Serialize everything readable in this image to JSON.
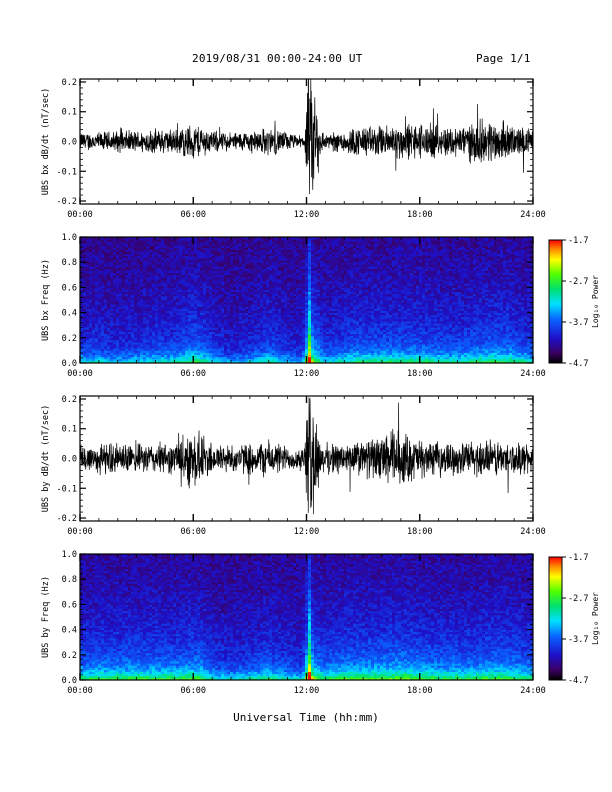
{
  "header": {
    "title": "2019/08/31  00:00-24:00 UT",
    "page": "Page 1/1"
  },
  "chart_data": [
    {
      "type": "line",
      "title": "",
      "ylabel": "UBS bx dB/dt (nT/sec)",
      "xlabel": "",
      "x_range_hours": [
        0,
        24
      ],
      "ylim": [
        -0.21,
        0.21
      ],
      "xticks": [
        "00:00",
        "06:00",
        "12:00",
        "18:00",
        "24:00"
      ],
      "yticks": [
        "-0.2",
        "-0.1",
        "0.0",
        "0.1",
        "0.2"
      ],
      "amplitude_envelope": {
        "hours": [
          0,
          1,
          2,
          3,
          4,
          5,
          5.5,
          6,
          6.5,
          7,
          8,
          9,
          10,
          10.5,
          11,
          11.5,
          11.9,
          12.1,
          12.4,
          12.7,
          13,
          14,
          15,
          16,
          17,
          18,
          19,
          20,
          21,
          22,
          23,
          24
        ],
        "values": [
          0.03,
          0.03,
          0.035,
          0.035,
          0.04,
          0.04,
          0.05,
          0.06,
          0.05,
          0.035,
          0.03,
          0.035,
          0.045,
          0.04,
          0.03,
          0.02,
          0.02,
          0.21,
          0.21,
          0.05,
          0.025,
          0.04,
          0.05,
          0.05,
          0.06,
          0.06,
          0.05,
          0.05,
          0.07,
          0.07,
          0.05,
          0.04
        ]
      }
    },
    {
      "type": "heatmap",
      "title": "",
      "ylabel": "UBS bx Freq (Hz)",
      "xlabel": "",
      "x_range_hours": [
        0,
        24
      ],
      "ylim": [
        0,
        1.0
      ],
      "xticks": [
        "00:00",
        "06:00",
        "12:00",
        "18:00",
        "24:00"
      ],
      "yticks": [
        "0.0",
        "0.2",
        "0.4",
        "0.6",
        "0.8",
        "1.0"
      ],
      "colorbar": {
        "label": "Log₁₀ Power",
        "range": [
          -4.7,
          -1.7
        ],
        "ticks": [
          "-1.7",
          "-2.7",
          "-3.7",
          "-4.7"
        ]
      },
      "activity": {
        "hours": [
          0,
          1,
          2,
          3,
          4,
          5,
          6,
          6.5,
          7,
          8,
          9,
          10,
          11,
          11.8,
          12.1,
          12.5,
          13,
          14,
          15,
          16,
          17,
          18,
          19,
          20,
          21,
          22,
          23,
          24
        ],
        "values": [
          0.35,
          0.35,
          0.3,
          0.35,
          0.4,
          0.4,
          0.55,
          0.5,
          0.35,
          0.25,
          0.3,
          0.45,
          0.3,
          0.25,
          1.0,
          0.6,
          0.35,
          0.45,
          0.5,
          0.5,
          0.5,
          0.5,
          0.45,
          0.45,
          0.5,
          0.55,
          0.5,
          0.4
        ]
      }
    },
    {
      "type": "line",
      "title": "",
      "ylabel": "UBS by dB/dt (nT/sec)",
      "xlabel": "",
      "x_range_hours": [
        0,
        24
      ],
      "ylim": [
        -0.21,
        0.21
      ],
      "xticks": [
        "00:00",
        "06:00",
        "12:00",
        "18:00",
        "24:00"
      ],
      "yticks": [
        "-0.2",
        "-0.1",
        "0.0",
        "0.1",
        "0.2"
      ],
      "amplitude_envelope": {
        "hours": [
          0,
          1,
          2,
          3,
          4,
          5,
          5.5,
          6,
          6.5,
          7,
          8,
          9,
          10,
          10.5,
          11,
          11.5,
          11.9,
          12.1,
          12.4,
          12.7,
          13,
          14,
          15,
          16,
          16.5,
          17,
          18,
          19,
          20,
          21,
          22,
          23,
          24
        ],
        "values": [
          0.05,
          0.05,
          0.05,
          0.045,
          0.05,
          0.05,
          0.08,
          0.1,
          0.08,
          0.05,
          0.045,
          0.05,
          0.06,
          0.05,
          0.04,
          0.035,
          0.04,
          0.21,
          0.21,
          0.06,
          0.05,
          0.05,
          0.06,
          0.07,
          0.1,
          0.09,
          0.06,
          0.05,
          0.05,
          0.06,
          0.06,
          0.05,
          0.05
        ]
      }
    },
    {
      "type": "heatmap",
      "title": "",
      "ylabel": "UBS by Freq (Hz)",
      "xlabel": "Universal Time (hh:mm)",
      "x_range_hours": [
        0,
        24
      ],
      "ylim": [
        0,
        1.0
      ],
      "xticks": [
        "00:00",
        "06:00",
        "12:00",
        "18:00",
        "24:00"
      ],
      "yticks": [
        "0.0",
        "0.2",
        "0.4",
        "0.6",
        "0.8",
        "1.0"
      ],
      "colorbar": {
        "label": "Log₁₀ Power",
        "range": [
          -4.7,
          -1.7
        ],
        "ticks": [
          "-1.7",
          "-2.7",
          "-3.7",
          "-4.7"
        ]
      },
      "activity": {
        "hours": [
          0,
          1,
          2,
          3,
          4,
          5,
          6,
          6.5,
          7,
          8,
          9,
          10,
          11,
          11.8,
          12.1,
          12.5,
          13,
          14,
          15,
          16,
          17,
          18,
          19,
          20,
          21,
          22,
          23,
          24
        ],
        "values": [
          0.5,
          0.55,
          0.55,
          0.55,
          0.55,
          0.55,
          0.6,
          0.55,
          0.4,
          0.35,
          0.4,
          0.5,
          0.4,
          0.35,
          1.0,
          0.6,
          0.5,
          0.6,
          0.6,
          0.6,
          0.65,
          0.6,
          0.55,
          0.55,
          0.55,
          0.6,
          0.55,
          0.5
        ]
      }
    }
  ]
}
